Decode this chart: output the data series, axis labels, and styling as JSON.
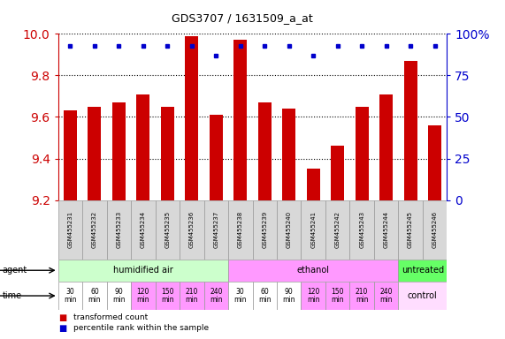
{
  "title": "GDS3707 / 1631509_a_at",
  "samples": [
    "GSM455231",
    "GSM455232",
    "GSM455233",
    "GSM455234",
    "GSM455235",
    "GSM455236",
    "GSM455237",
    "GSM455238",
    "GSM455239",
    "GSM455240",
    "GSM455241",
    "GSM455242",
    "GSM455243",
    "GSM455244",
    "GSM455245",
    "GSM455246"
  ],
  "transformed_count": [
    9.63,
    9.65,
    9.67,
    9.71,
    9.65,
    9.99,
    9.61,
    9.97,
    9.67,
    9.64,
    9.35,
    9.46,
    9.65,
    9.71,
    9.87,
    9.56
  ],
  "percentile_rank": [
    93,
    93,
    93,
    93,
    93,
    93,
    87,
    93,
    93,
    93,
    87,
    93,
    93,
    93,
    93,
    93
  ],
  "ylim": [
    9.2,
    10.0
  ],
  "yticks_left": [
    9.2,
    9.4,
    9.6,
    9.8,
    10.0
  ],
  "yticks_right": [
    0,
    25,
    50,
    75,
    100
  ],
  "bar_color": "#cc0000",
  "dot_color": "#0000cc",
  "agent_rows": [
    {
      "text": "humidified air",
      "start": 0,
      "end": 7,
      "color": "#ccffcc"
    },
    {
      "text": "ethanol",
      "start": 7,
      "end": 14,
      "color": "#ff99ff"
    },
    {
      "text": "untreated",
      "start": 14,
      "end": 16,
      "color": "#66ff66"
    }
  ],
  "time_rows": [
    {
      "text": "30\nmin",
      "start": 0,
      "end": 1,
      "color": "#ffffff"
    },
    {
      "text": "60\nmin",
      "start": 1,
      "end": 2,
      "color": "#ffffff"
    },
    {
      "text": "90\nmin",
      "start": 2,
      "end": 3,
      "color": "#ffffff"
    },
    {
      "text": "120\nmin",
      "start": 3,
      "end": 4,
      "color": "#ff99ff"
    },
    {
      "text": "150\nmin",
      "start": 4,
      "end": 5,
      "color": "#ff99ff"
    },
    {
      "text": "210\nmin",
      "start": 5,
      "end": 6,
      "color": "#ff99ff"
    },
    {
      "text": "240\nmin",
      "start": 6,
      "end": 7,
      "color": "#ff99ff"
    },
    {
      "text": "30\nmin",
      "start": 7,
      "end": 8,
      "color": "#ffffff"
    },
    {
      "text": "60\nmin",
      "start": 8,
      "end": 9,
      "color": "#ffffff"
    },
    {
      "text": "90\nmin",
      "start": 9,
      "end": 10,
      "color": "#ffffff"
    },
    {
      "text": "120\nmin",
      "start": 10,
      "end": 11,
      "color": "#ff99ff"
    },
    {
      "text": "150\nmin",
      "start": 11,
      "end": 12,
      "color": "#ff99ff"
    },
    {
      "text": "210\nmin",
      "start": 12,
      "end": 13,
      "color": "#ff99ff"
    },
    {
      "text": "240\nmin",
      "start": 13,
      "end": 14,
      "color": "#ff99ff"
    },
    {
      "text": "control",
      "start": 14,
      "end": 16,
      "color": "#ffddff"
    }
  ],
  "sample_bg": "#d8d8d8",
  "bg_color": "#ffffff",
  "tick_color_left": "#cc0000",
  "tick_color_right": "#0000cc"
}
